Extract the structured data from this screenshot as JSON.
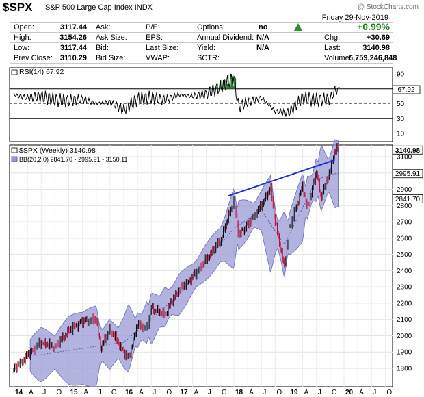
{
  "header": {
    "symbol": "$SPX",
    "name": "S&P 500 Large Cap Index",
    "exchange": "INDX",
    "watermark": "@ StockCharts.com",
    "date": "Friday  29-Nov-2019",
    "stats": {
      "open_label": "Open:",
      "open": "3117.44",
      "high_label": "High:",
      "high": "3154.26",
      "low_label": "Low:",
      "low": "3117.44",
      "prev_label": "Prev Close:",
      "prev": "3110.29",
      "ask_label": "Ask:",
      "ask": "",
      "asksize_label": "Ask Size:",
      "asksize": "",
      "bid_label": "Bid:",
      "bid": "",
      "bidsize_label": "Bid Size:",
      "bidsize": "",
      "pe_label": "P/E:",
      "pe": "",
      "eps_label": "EPS:",
      "eps": "",
      "lastsize_label": "Last Size:",
      "lastsize": "",
      "vwap_label": "VWAP:",
      "vwap": "",
      "options_label": "Options:",
      "options": "no",
      "div_label": "Annual Dividend:",
      "div": "N/A",
      "yield_label": "Yield:",
      "yield": "N/A",
      "sctr_label": "SCTR:",
      "sctr": "",
      "pct_change": "+0.99%",
      "chg_label": "Chg:",
      "chg": "+30.69",
      "last_label": "Last:",
      "last": "3140.98",
      "volume_label": "Volume:",
      "volume": "6,759,246,848"
    }
  },
  "colors": {
    "band": "#9a9ad6",
    "candle": "#000000",
    "down_candle": "#c0002a",
    "trend": "#1f2ee0",
    "rsi_fill": "#2e7d32"
  },
  "chart_data": [
    {
      "type": "line",
      "title": "RSI(14) 67.92",
      "current_value": "67.92",
      "ylim": [
        0,
        100
      ],
      "ytick_labels": [
        "90",
        "70",
        "50",
        "30",
        "10"
      ],
      "yticks": [
        90,
        70,
        50,
        30,
        10
      ],
      "reference_lines": [
        70,
        50,
        30
      ],
      "x": [
        "2014-01",
        "2014-04",
        "2014-07",
        "2014-10",
        "2015-01",
        "2015-04",
        "2015-07",
        "2015-10",
        "2016-01",
        "2016-04",
        "2016-07",
        "2016-10",
        "2017-01",
        "2017-04",
        "2017-07",
        "2017-10",
        "2018-01",
        "2018-02",
        "2018-04",
        "2018-07",
        "2018-10",
        "2019-01",
        "2019-04",
        "2019-07",
        "2019-10",
        "2019-11"
      ],
      "values": [
        62,
        58,
        60,
        55,
        54,
        56,
        50,
        52,
        42,
        56,
        58,
        55,
        62,
        60,
        63,
        72,
        85,
        46,
        52,
        58,
        40,
        38,
        58,
        55,
        56,
        67.92
      ]
    },
    {
      "type": "line",
      "title": "$SPX (Weekly) 3140.98",
      "subtitle": "BB(20,2.0) 2841.70 - 2995.91 - 3150.11",
      "ylim": [
        1720,
        3200
      ],
      "ytick_labels": [
        "3100",
        "3000",
        "2900",
        "2800",
        "2700",
        "2600",
        "2500",
        "2400",
        "2300",
        "2200",
        "2100",
        "2000",
        "1900",
        "1800"
      ],
      "yticks": [
        3100,
        3000,
        2900,
        2800,
        2700,
        2600,
        2500,
        2400,
        2300,
        2200,
        2100,
        2000,
        1900,
        1800
      ],
      "price_labels": [
        "3140.98",
        "2995.91",
        "2841.70"
      ],
      "x_tick_labels": [
        "14",
        "A",
        "J",
        "O",
        "15",
        "A",
        "J",
        "O",
        "16",
        "A",
        "J",
        "O",
        "17",
        "A",
        "J",
        "O",
        "18",
        "A",
        "J",
        "O",
        "19",
        "A",
        "J",
        "O",
        "20",
        "A",
        "J",
        "O"
      ],
      "series": [
        {
          "x": [
            "2014-01",
            "2014-04",
            "2014-07",
            "2014-10",
            "2015-01",
            "2015-04",
            "2015-07",
            "2015-08",
            "2015-10",
            "2016-01",
            "2016-02",
            "2016-04",
            "2016-06",
            "2016-07",
            "2016-10",
            "2016-11",
            "2017-01",
            "2017-04",
            "2017-07",
            "2017-10",
            "2018-01",
            "2018-02",
            "2018-04",
            "2018-07",
            "2018-09",
            "2018-10",
            "2018-12",
            "2019-01",
            "2019-04",
            "2019-05",
            "2019-07",
            "2019-08",
            "2019-10",
            "2019-11"
          ],
          "values": [
            1790,
            1880,
            1960,
            1930,
            2030,
            2090,
            2100,
            1920,
            2040,
            1900,
            1860,
            2070,
            2040,
            2170,
            2130,
            2190,
            2280,
            2360,
            2470,
            2580,
            2830,
            2620,
            2680,
            2800,
            2910,
            2700,
            2420,
            2650,
            2920,
            2780,
            3010,
            2850,
            3020,
            3140.98
          ]
        },
        {
          "x": [
            "2014-06",
            "2016-01",
            "2017-01",
            "2018-01",
            "2018-07",
            "2018-12",
            "2019-07",
            "2019-11"
          ],
          "values": [
            1880,
            1960,
            2250,
            2660,
            2770,
            2560,
            2960,
            2995.91
          ]
        }
      ],
      "trendline": {
        "x": [
          "2018-01",
          "2019-11"
        ],
        "values": [
          2860,
          3080
        ]
      }
    }
  ]
}
